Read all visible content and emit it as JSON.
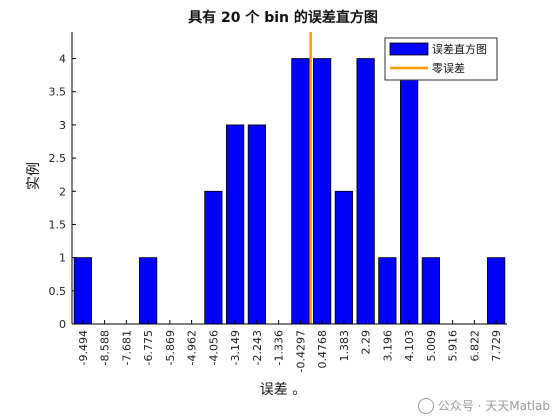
{
  "chart_data": {
    "type": "bar",
    "title": "具有 20 个 bin 的误差直方图",
    "xlabel": "误差 。",
    "ylabel": "实例",
    "categories": [
      "-9.494",
      "-8.588",
      "-7.681",
      "-6.775",
      "-5.869",
      "-4.962",
      "-4.056",
      "-3.149",
      "-2.243",
      "-1.336",
      "-0.4297",
      "0.4768",
      "1.383",
      "2.29",
      "3.196",
      "4.103",
      "5.009",
      "5.916",
      "6.822",
      "7.729"
    ],
    "values": [
      1,
      0,
      0,
      1,
      0,
      0,
      2,
      3,
      3,
      0,
      4,
      4,
      2,
      4,
      1,
      4,
      1,
      0,
      0,
      1
    ],
    "ylim": [
      0,
      4.4
    ],
    "yticks": [
      "0",
      "0.5",
      "1",
      "1.5",
      "2",
      "2.5",
      "3",
      "3.5",
      "4"
    ],
    "zero_line_x": 0,
    "grid": false,
    "legend_position": "top-right",
    "series": [
      {
        "name": "误差直方图",
        "color": "#0000ff"
      },
      {
        "name": "零误差",
        "color": "#ff9900"
      }
    ]
  },
  "watermark": {
    "text": "公众号 · 天天Matlab"
  }
}
